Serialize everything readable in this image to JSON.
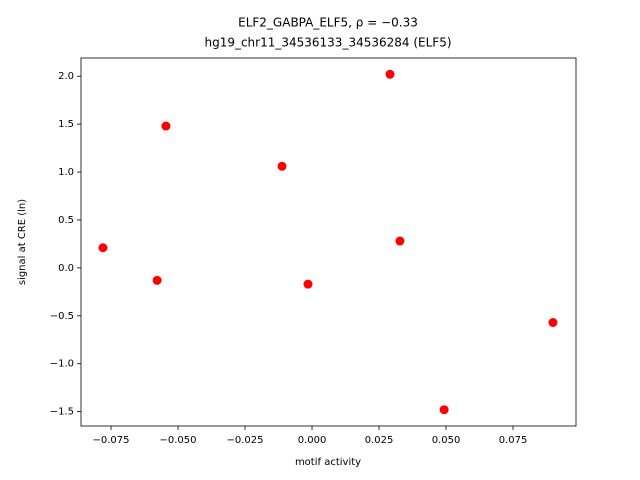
{
  "chart_data": {
    "type": "scatter",
    "title": "ELF2_GABPA_ELF5, ρ = −0.33",
    "subtitle": "hg19_chr11_34536133_34536284 (ELF5)",
    "x_label": "motif activity",
    "y_label": "signal at CRE (ln)",
    "color": "#ff0000",
    "x": [
      -0.078,
      -0.0578,
      -0.0545,
      -0.0112,
      -0.0015,
      0.0291,
      0.0328,
      0.0493,
      0.0899
    ],
    "values": [
      0.21,
      -0.13,
      1.48,
      1.06,
      -0.17,
      2.02,
      0.28,
      -1.48,
      -0.57
    ],
    "xlim": [
      -0.0862,
      0.0985
    ],
    "ylim": [
      -1.65,
      2.19
    ],
    "xticks": [
      {
        "value": -0.075,
        "label": "−0.075"
      },
      {
        "value": -0.05,
        "label": "−0.050"
      },
      {
        "value": -0.025,
        "label": "−0.025"
      },
      {
        "value": 0,
        "label": "0.000"
      },
      {
        "value": 0.025,
        "label": "0.025"
      },
      {
        "value": 0.05,
        "label": "0.050"
      },
      {
        "value": 0.075,
        "label": "0.075"
      }
    ],
    "yticks": [
      {
        "value": -1.5,
        "label": "−1.5"
      },
      {
        "value": -1,
        "label": "−1.0"
      },
      {
        "value": -0.5,
        "label": "−0.5"
      },
      {
        "value": 0,
        "label": "0.0"
      },
      {
        "value": 0.5,
        "label": "0.5"
      },
      {
        "value": 1,
        "label": "1.0"
      },
      {
        "value": 1.5,
        "label": "1.5"
      },
      {
        "value": 2,
        "label": "2.0"
      }
    ]
  }
}
